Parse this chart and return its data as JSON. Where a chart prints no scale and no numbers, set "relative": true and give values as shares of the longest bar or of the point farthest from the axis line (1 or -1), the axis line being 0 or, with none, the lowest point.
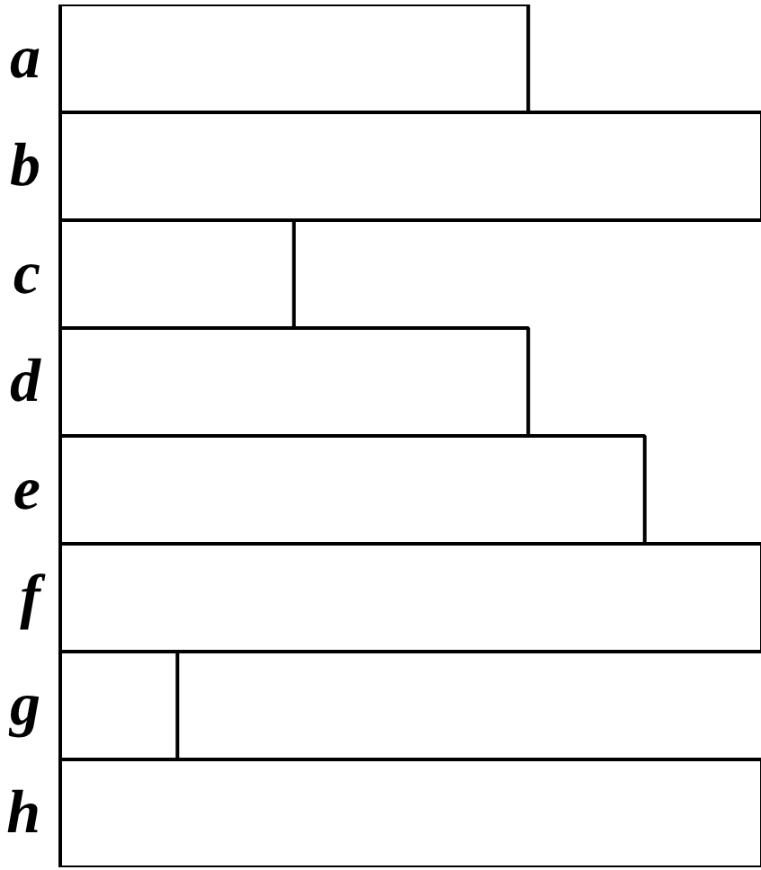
{
  "chart_data": {
    "type": "bar",
    "orientation": "horizontal",
    "relative": true,
    "categories": [
      "a",
      "b",
      "c",
      "d",
      "e",
      "f",
      "g",
      "h"
    ],
    "values": [
      0.667,
      1,
      0.333,
      0.667,
      0.833,
      1,
      0.167,
      1
    ],
    "color": "#ffffff",
    "grid": false
  }
}
